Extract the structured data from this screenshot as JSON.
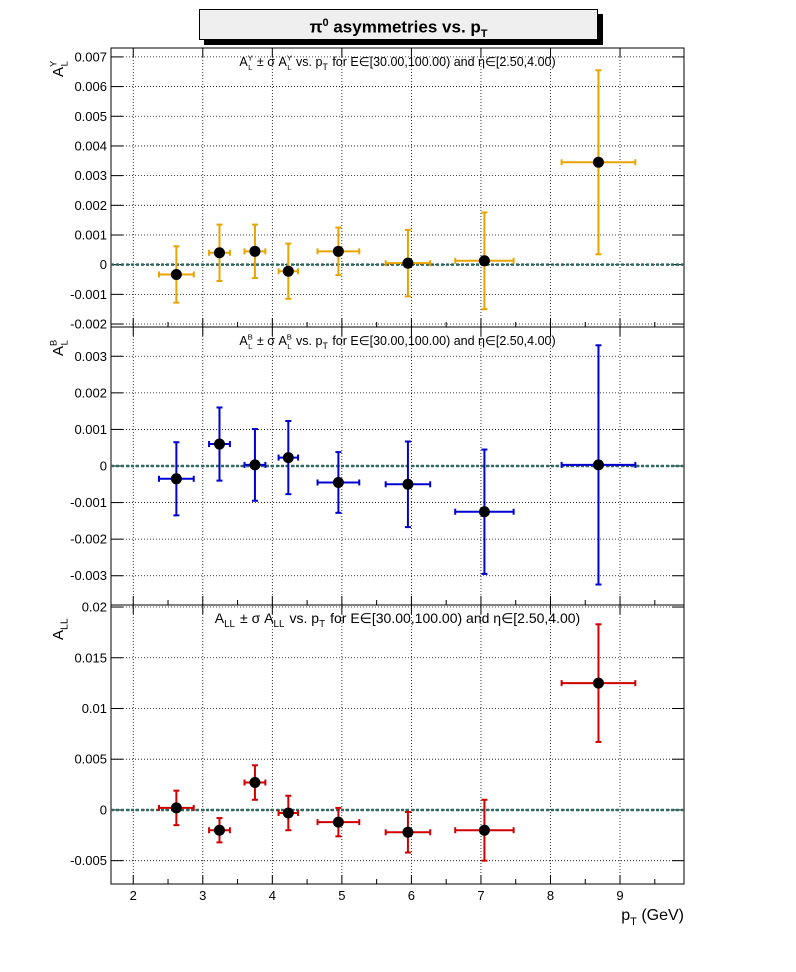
{
  "title": {
    "prefix": "π",
    "sup": "0",
    "middle": " asymmetries vs. p",
    "sub": "T"
  },
  "x_axis": {
    "label": "p",
    "label_sub": "T",
    "label_unit": " (GeV)",
    "ticks": [
      "2",
      "3",
      "4",
      "5",
      "6",
      "7",
      "8",
      "9"
    ]
  },
  "colors": {
    "yellow": "#e8a400",
    "blue": "#0000d0",
    "red": "#d00000",
    "zero_line": "#2e6b60",
    "marker": "#000000"
  },
  "chart_data": [
    {
      "type": "scatter",
      "ylabel": "A_L^Y",
      "annotation": "A_L^Y ± σ A_L^Y vs. p_T for E∈[30.00,100.00) and η∈[2.50,4.00)",
      "ylim": [
        -0.0021,
        0.0073
      ],
      "yticks": [
        "-0.002",
        "-0.001",
        "0",
        "0.001",
        "0.002",
        "0.003",
        "0.004",
        "0.005",
        "0.006",
        "0.007"
      ],
      "ytick_values": [
        -0.002,
        -0.001,
        0,
        0.001,
        0.002,
        0.003,
        0.004,
        0.005,
        0.006,
        0.007
      ],
      "color": "yellow",
      "points": [
        {
          "x": 2.62,
          "xerr": 0.25,
          "y": -0.00033,
          "yerr": 0.00095
        },
        {
          "x": 3.24,
          "xerr": 0.15,
          "y": 0.0004,
          "yerr": 0.00095
        },
        {
          "x": 3.75,
          "xerr": 0.15,
          "y": 0.00045,
          "yerr": 0.0009
        },
        {
          "x": 4.23,
          "xerr": 0.14,
          "y": -0.00022,
          "yerr": 0.00093
        },
        {
          "x": 4.95,
          "xerr": 0.3,
          "y": 0.00045,
          "yerr": 0.0008
        },
        {
          "x": 5.95,
          "xerr": 0.32,
          "y": 5e-05,
          "yerr": 0.00112
        },
        {
          "x": 7.05,
          "xerr": 0.42,
          "y": 0.00013,
          "yerr": 0.00163
        },
        {
          "x": 8.69,
          "xerr": 0.53,
          "y": 0.00345,
          "yerr": 0.0031
        }
      ]
    },
    {
      "type": "scatter",
      "ylabel": "A_L^B",
      "annotation": "A_L^B ± σ A_L^B vs. p_T for E∈[30.00,100.00) and η∈[2.50,4.00)",
      "ylim": [
        -0.0038,
        0.0038
      ],
      "yticks": [
        "-0.003",
        "-0.002",
        "-0.001",
        "0",
        "0.001",
        "0.002",
        "0.003"
      ],
      "ytick_values": [
        -0.003,
        -0.002,
        -0.001,
        0,
        0.001,
        0.002,
        0.003
      ],
      "color": "blue",
      "points": [
        {
          "x": 2.62,
          "xerr": 0.25,
          "y": -0.00035,
          "yerr": 0.001
        },
        {
          "x": 3.24,
          "xerr": 0.15,
          "y": 0.0006,
          "yerr": 0.001
        },
        {
          "x": 3.75,
          "xerr": 0.15,
          "y": 3e-05,
          "yerr": 0.00098
        },
        {
          "x": 4.23,
          "xerr": 0.14,
          "y": 0.00023,
          "yerr": 0.001
        },
        {
          "x": 4.95,
          "xerr": 0.3,
          "y": -0.00045,
          "yerr": 0.00083
        },
        {
          "x": 5.95,
          "xerr": 0.32,
          "y": -0.0005,
          "yerr": 0.00117
        },
        {
          "x": 7.05,
          "xerr": 0.42,
          "y": -0.00125,
          "yerr": 0.0017
        },
        {
          "x": 8.69,
          "xerr": 0.53,
          "y": 3e-05,
          "yerr": 0.00327
        }
      ]
    },
    {
      "type": "scatter",
      "ylabel": "A_LL",
      "annotation": "A_LL ± σ A_LL vs. p_T for E∈[30.00,100.00) and η∈[2.50,4.00)",
      "ylim": [
        -0.0073,
        0.0202
      ],
      "yticks": [
        "-0.005",
        "0",
        "0.005",
        "0.01",
        "0.015",
        "0.02"
      ],
      "ytick_values": [
        -0.005,
        0,
        0.005,
        0.01,
        0.015,
        0.02
      ],
      "color": "red",
      "points": [
        {
          "x": 2.62,
          "xerr": 0.25,
          "y": 0.0002,
          "yerr": 0.0017
        },
        {
          "x": 3.24,
          "xerr": 0.15,
          "y": -0.002,
          "yerr": 0.0012
        },
        {
          "x": 3.75,
          "xerr": 0.15,
          "y": 0.0027,
          "yerr": 0.0017
        },
        {
          "x": 4.23,
          "xerr": 0.14,
          "y": -0.0003,
          "yerr": 0.0017
        },
        {
          "x": 4.95,
          "xerr": 0.3,
          "y": -0.0012,
          "yerr": 0.0014
        },
        {
          "x": 5.95,
          "xerr": 0.32,
          "y": -0.0022,
          "yerr": 0.002
        },
        {
          "x": 7.05,
          "xerr": 0.42,
          "y": -0.002,
          "yerr": 0.003
        },
        {
          "x": 8.69,
          "xerr": 0.53,
          "y": 0.0125,
          "yerr": 0.0058
        }
      ]
    }
  ]
}
